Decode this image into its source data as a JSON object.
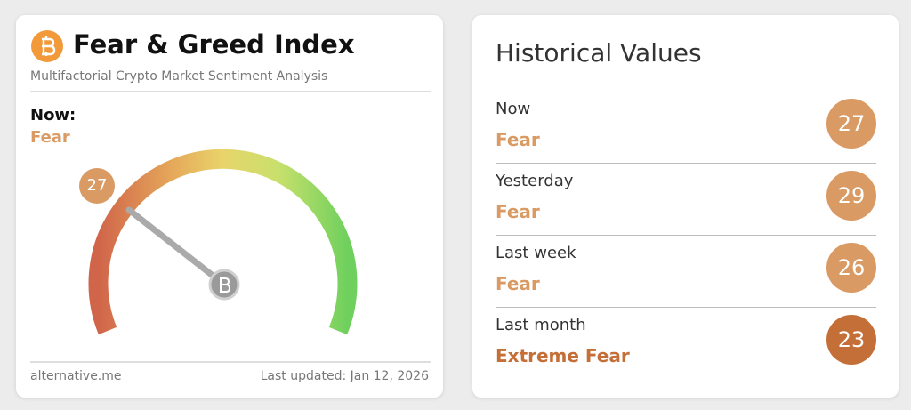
{
  "header": {
    "title": "Fear & Greed Index",
    "subtitle": "Multifactorial Crypto Market Sentiment Analysis"
  },
  "now": {
    "label": "Now:",
    "classification": "Fear",
    "value": 27,
    "color": "#d99a64"
  },
  "footer": {
    "source": "alternative.me",
    "updated": "Last updated: Jan 12, 2026"
  },
  "historical": {
    "title": "Historical Values",
    "rows": [
      {
        "period": "Now",
        "classification": "Fear",
        "value": 27,
        "color": "#d99a64"
      },
      {
        "period": "Yesterday",
        "classification": "Fear",
        "value": 29,
        "color": "#d99a64"
      },
      {
        "period": "Last week",
        "classification": "Fear",
        "value": 26,
        "color": "#d99a64"
      },
      {
        "period": "Last month",
        "classification": "Extreme Fear",
        "value": 23,
        "color": "#c46f38"
      }
    ]
  }
}
